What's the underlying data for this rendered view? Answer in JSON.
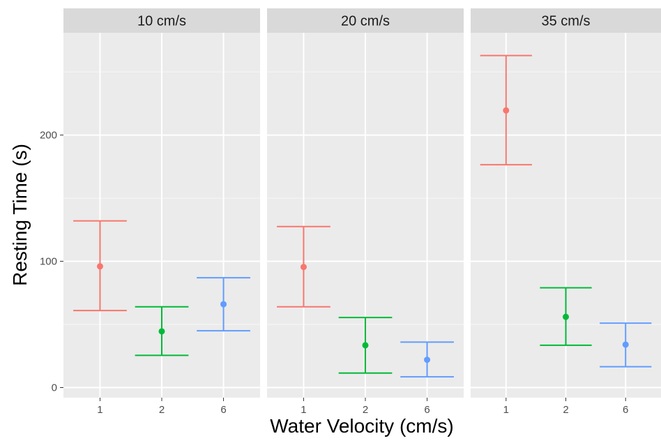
{
  "chart_data": {
    "type": "scatter",
    "subtype": "point with error bars, faceted",
    "xlabel": "Water Velocity (cm/s)",
    "ylabel": "Resting Time (s)",
    "ylim": [
      -8,
      281
    ],
    "yticks": [
      0,
      100,
      200
    ],
    "categories": [
      "1",
      "2",
      "6"
    ],
    "category_colors": [
      "#f8766d",
      "#00ba38",
      "#619cff"
    ],
    "panel_background": "#ebebeb",
    "strip_background": "#d9d9d9",
    "grid": true,
    "legend": "none",
    "facets": [
      {
        "label": "10 cm/s",
        "points": [
          {
            "x": "1",
            "y": 96,
            "ymin": 61,
            "ymax": 132
          },
          {
            "x": "2",
            "y": 44.5,
            "ymin": 25.5,
            "ymax": 64
          },
          {
            "x": "6",
            "y": 66,
            "ymin": 45,
            "ymax": 87
          }
        ]
      },
      {
        "label": "20 cm/s",
        "points": [
          {
            "x": "1",
            "y": 95.5,
            "ymin": 64,
            "ymax": 127.5
          },
          {
            "x": "2",
            "y": 33.5,
            "ymin": 11.5,
            "ymax": 55.5
          },
          {
            "x": "6",
            "y": 22,
            "ymin": 8.5,
            "ymax": 36
          }
        ]
      },
      {
        "label": "35 cm/s",
        "points": [
          {
            "x": "1",
            "y": 219.5,
            "ymin": 176.5,
            "ymax": 263
          },
          {
            "x": "2",
            "y": 56,
            "ymin": 33.5,
            "ymax": 79
          },
          {
            "x": "6",
            "y": 34,
            "ymin": 16.5,
            "ymax": 51
          }
        ]
      }
    ]
  }
}
